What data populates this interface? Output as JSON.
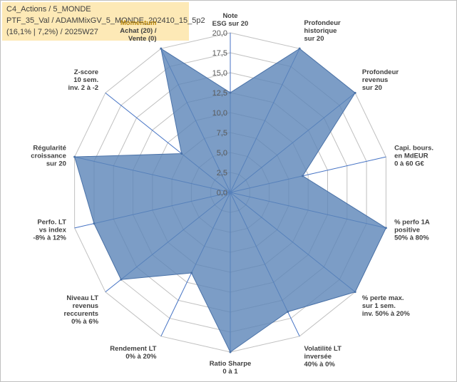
{
  "header": {
    "line1": "C4_Actions / 5_MONDE",
    "line2": "PTF_35_Val / ADAMMixGV_5_MONDE_202410_15_5p2",
    "line3": "(16,1% | 7,2%) / 2025W27"
  },
  "chart_data": {
    "type": "radar",
    "rmax": 20,
    "ticks": [
      "0,0",
      "2,5",
      "5,0",
      "7,5",
      "10,0",
      "12,5",
      "15,0",
      "17,5",
      "20,0"
    ],
    "colors": {
      "fill": "#5b84b8",
      "fill_opacity": 0.8,
      "stroke": "#4a72a8",
      "grid": "#c0c0c0",
      "spoke": "#4472c4",
      "highlight": "#b8860b"
    },
    "axes": [
      {
        "id": "esg",
        "lines": [
          "Note",
          "ESG sur 20"
        ],
        "value": 12.5
      },
      {
        "id": "prof-hist",
        "lines": [
          "Profondeur",
          "historique",
          "sur 20"
        ],
        "value": 20
      },
      {
        "id": "prof-rev",
        "lines": [
          "Profondeur",
          "revenus",
          "sur 20"
        ],
        "value": 20
      },
      {
        "id": "capi",
        "lines": [
          "Capi. bours.",
          "en MdEUR",
          "0 à 60 G€"
        ],
        "value": 9.3
      },
      {
        "id": "perf-1a",
        "lines": [
          "% perfo 1A",
          "positive",
          "50% à 80%"
        ],
        "value": 20
      },
      {
        "id": "perte-max",
        "lines": [
          "% perte max.",
          "sur 1 sem.",
          "inv. 50% à 20%"
        ],
        "value": 20
      },
      {
        "id": "volat",
        "lines": [
          "Volatilité LT",
          "inversée",
          "40% à 0%"
        ],
        "value": 16.6
      },
      {
        "id": "sharpe",
        "lines": [
          "Ratio Sharpe",
          "0 à 1"
        ],
        "value": 20
      },
      {
        "id": "rendement",
        "lines": [
          "Rendement LT",
          "0% à 20%"
        ],
        "value": 11.2
      },
      {
        "id": "niveau-lt",
        "lines": [
          "Niveau LT",
          "revenus",
          "reccurents",
          "0% à 6%"
        ],
        "value": 17.5
      },
      {
        "id": "perf-lt",
        "lines": [
          "Perfo. LT",
          "vs index",
          "-8% à 12%"
        ],
        "value": 17.5
      },
      {
        "id": "regularite",
        "lines": [
          "Régularité",
          "croissance",
          "sur 20"
        ],
        "value": 20
      },
      {
        "id": "zscore",
        "lines": [
          "Z-score",
          "10 sem.",
          "inv. 2 à -2"
        ],
        "value": 7.8
      },
      {
        "id": "momentum",
        "lines": [
          "Momentum",
          "Achat (20) /",
          "Vente (0)"
        ],
        "value": 20,
        "first_line_highlight": true
      }
    ]
  }
}
